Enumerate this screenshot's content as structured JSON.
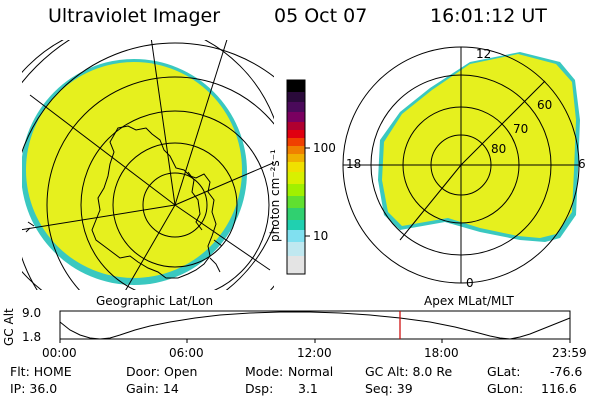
{
  "header": {
    "instrument": "Ultraviolet Imager",
    "date": "05 Oct 07",
    "time": "16:01:12 UT"
  },
  "colorbar": {
    "unit_label": "photon cm⁻²s⁻¹",
    "ticks": [
      "100",
      "10"
    ],
    "colors": [
      "#000000",
      "#2a0a3a",
      "#4a0a5a",
      "#7a0060",
      "#a00030",
      "#d00010",
      "#f04000",
      "#f08000",
      "#f0b000",
      "#f0e000",
      "#d8f000",
      "#a0f000",
      "#60e030",
      "#20d0b0",
      "#80e0f0",
      "#c0e8f0",
      "#e0e0e0"
    ]
  },
  "left_panel": {
    "caption": "Geographic Lat/Lon",
    "fill_color": "#e6f01e",
    "edge_color": "#3ac8c0"
  },
  "right_panel": {
    "caption": "Apex MLat/MLT",
    "mlt_labels": {
      "top": "12",
      "left": "18",
      "right": "6",
      "bottom": "0"
    },
    "lat_labels": [
      "60",
      "70",
      "80"
    ],
    "fill_color": "#e6f01e",
    "edge_color": "#3ac8c0"
  },
  "altitude_plot": {
    "axis_title": "GC Alt",
    "y_ticks": [
      "9.0",
      "1.8"
    ],
    "x_ticks": [
      "00:00",
      "06:00",
      "12:00",
      "18:00",
      "23:59"
    ],
    "marker_color": "#cc0000",
    "marker_fraction": 0.668
  },
  "status": {
    "flt": "Flt: HOME",
    "door": "Door: Open",
    "mode_label": "Mode:",
    "mode_value": "Normal",
    "gc_alt": "GC Alt: 8.0 Re",
    "glat_label": "GLat:",
    "glat_value": "-76.6",
    "ip": "IP: 36.0",
    "gain": "Gain: 14",
    "dsp_label": "Dsp:",
    "dsp_value": "3.1",
    "seq": "Seq: 39",
    "glon_label": "GLon:",
    "glon_value": "116.6"
  }
}
